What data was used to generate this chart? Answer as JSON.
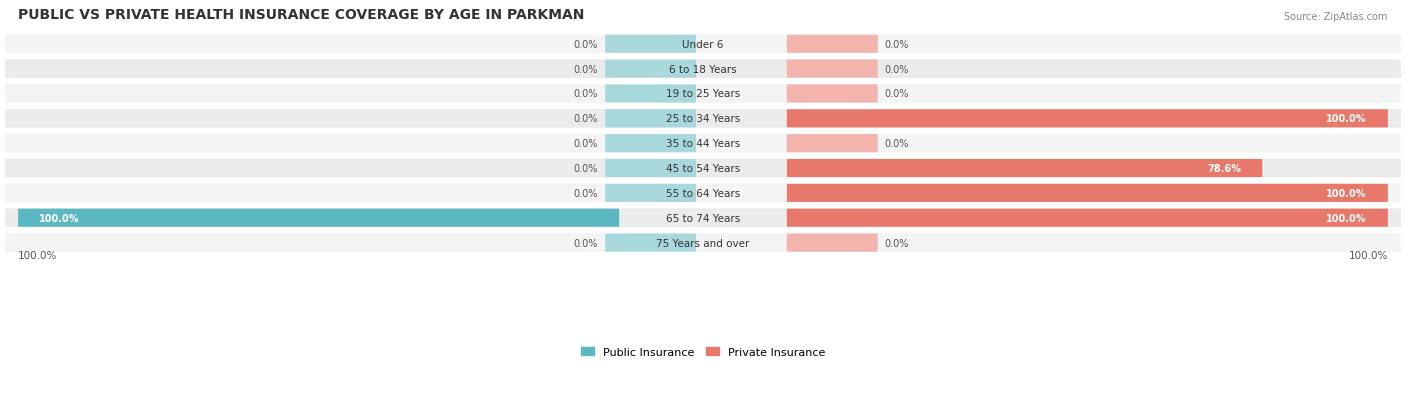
{
  "title": "PUBLIC VS PRIVATE HEALTH INSURANCE COVERAGE BY AGE IN PARKMAN",
  "source": "Source: ZipAtlas.com",
  "categories": [
    "Under 6",
    "6 to 18 Years",
    "19 to 25 Years",
    "25 to 34 Years",
    "35 to 44 Years",
    "45 to 54 Years",
    "55 to 64 Years",
    "65 to 74 Years",
    "75 Years and over"
  ],
  "public_values": [
    0.0,
    0.0,
    0.0,
    0.0,
    0.0,
    0.0,
    0.0,
    100.0,
    0.0
  ],
  "private_values": [
    0.0,
    0.0,
    0.0,
    100.0,
    0.0,
    78.6,
    100.0,
    100.0,
    0.0
  ],
  "public_color": "#5BB8C1",
  "private_color": "#E8796A",
  "public_color_light": "#A8D8DC",
  "private_color_light": "#F2B4AC",
  "bar_bg_color": "#F0F0F0",
  "row_bg_even": "#F7F7F7",
  "row_bg_odd": "#EEEEEE",
  "title_color": "#333333",
  "text_color": "#555555",
  "value_text_color_inside": "#FFFFFF",
  "value_text_color_outside": "#555555",
  "legend_public": "Public Insurance",
  "legend_private": "Private Insurance",
  "x_left_label": "100.0%",
  "x_right_label": "100.0%",
  "max_value": 100.0
}
